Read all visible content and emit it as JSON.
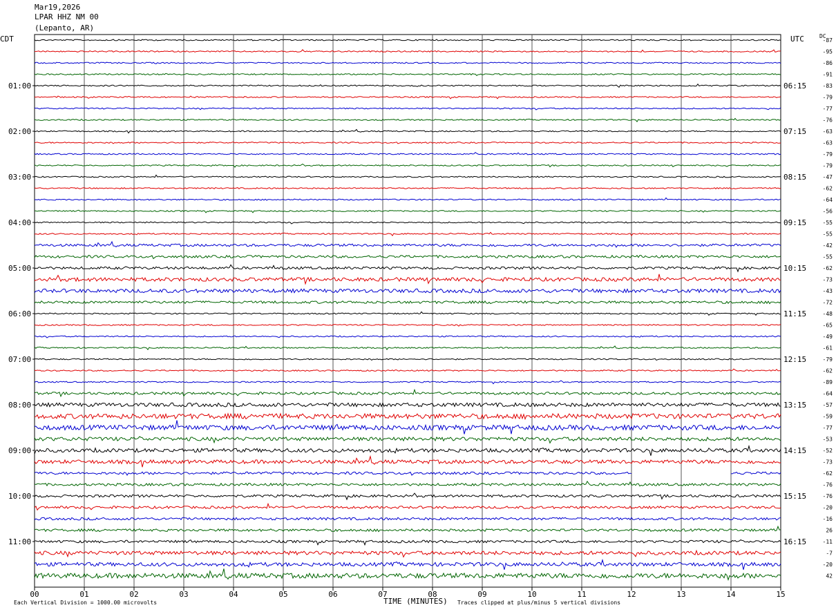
{
  "header": {
    "date": "Mar19,2026",
    "station": "LPAR HHZ NM 00",
    "location": "(Lepanto, AR)"
  },
  "left_axis_label": "CDT",
  "right_axis_label": "UTC",
  "dc_label": "DC",
  "footer": {
    "scale_note": "Each Vertical Division = 1000.00 microvolts",
    "xlabel": "TIME (MINUTES)",
    "clip_note": "Traces clipped at plus/minus 5 vertical divisions"
  },
  "colors": {
    "trace_cycle": [
      "#000000",
      "#e00000",
      "#0000d0",
      "#006400"
    ],
    "grid": "#000000"
  },
  "chart_data": {
    "type": "line",
    "title": "LPAR HHZ NM 00",
    "xlabel": "TIME (MINUTES)",
    "xlim": [
      0,
      15
    ],
    "x_ticks": [
      "00",
      "01",
      "02",
      "03",
      "04",
      "05",
      "06",
      "07",
      "08",
      "09",
      "10",
      "11",
      "12",
      "13",
      "14",
      "15"
    ],
    "grid": true,
    "traces_per_hour": 4,
    "left_hour_labels": [
      "01:00",
      "02:00",
      "03:00",
      "04:00",
      "05:00",
      "06:00",
      "07:00",
      "08:00",
      "09:00",
      "10:00",
      "11:00"
    ],
    "right_hour_labels": [
      "06:15",
      "07:15",
      "08:15",
      "09:15",
      "10:15",
      "11:15",
      "12:15",
      "13:15",
      "14:15",
      "15:15",
      "16:15"
    ],
    "dc_offsets": [
      -87,
      -95,
      -86,
      -91,
      -83,
      -79,
      -77,
      -76,
      -63,
      -63,
      -79,
      -79,
      -47,
      -62,
      -64,
      -56,
      -55,
      -55,
      -42,
      -55,
      -62,
      -73,
      -43,
      -72,
      -48,
      -65,
      -49,
      -61,
      -79,
      -62,
      -89,
      -64,
      -57,
      -59,
      -77,
      -53,
      -52,
      -73,
      -62,
      -76,
      -76,
      -20,
      -16,
      26,
      -11,
      -7,
      -20,
      42
    ],
    "amplitude_levels": [
      1,
      1,
      1,
      1,
      1,
      1,
      1,
      1,
      1,
      1,
      1,
      1,
      1,
      1,
      1,
      1,
      1,
      1,
      2,
      2,
      2,
      3,
      3,
      2,
      1,
      1,
      1,
      1,
      1,
      1,
      1,
      2,
      3,
      4,
      4,
      3,
      3,
      3,
      2,
      2,
      2,
      2,
      2,
      2,
      2,
      3,
      3,
      4
    ],
    "data_gap": {
      "trace_index": 38,
      "x_start": 12,
      "x_end": 14
    }
  }
}
